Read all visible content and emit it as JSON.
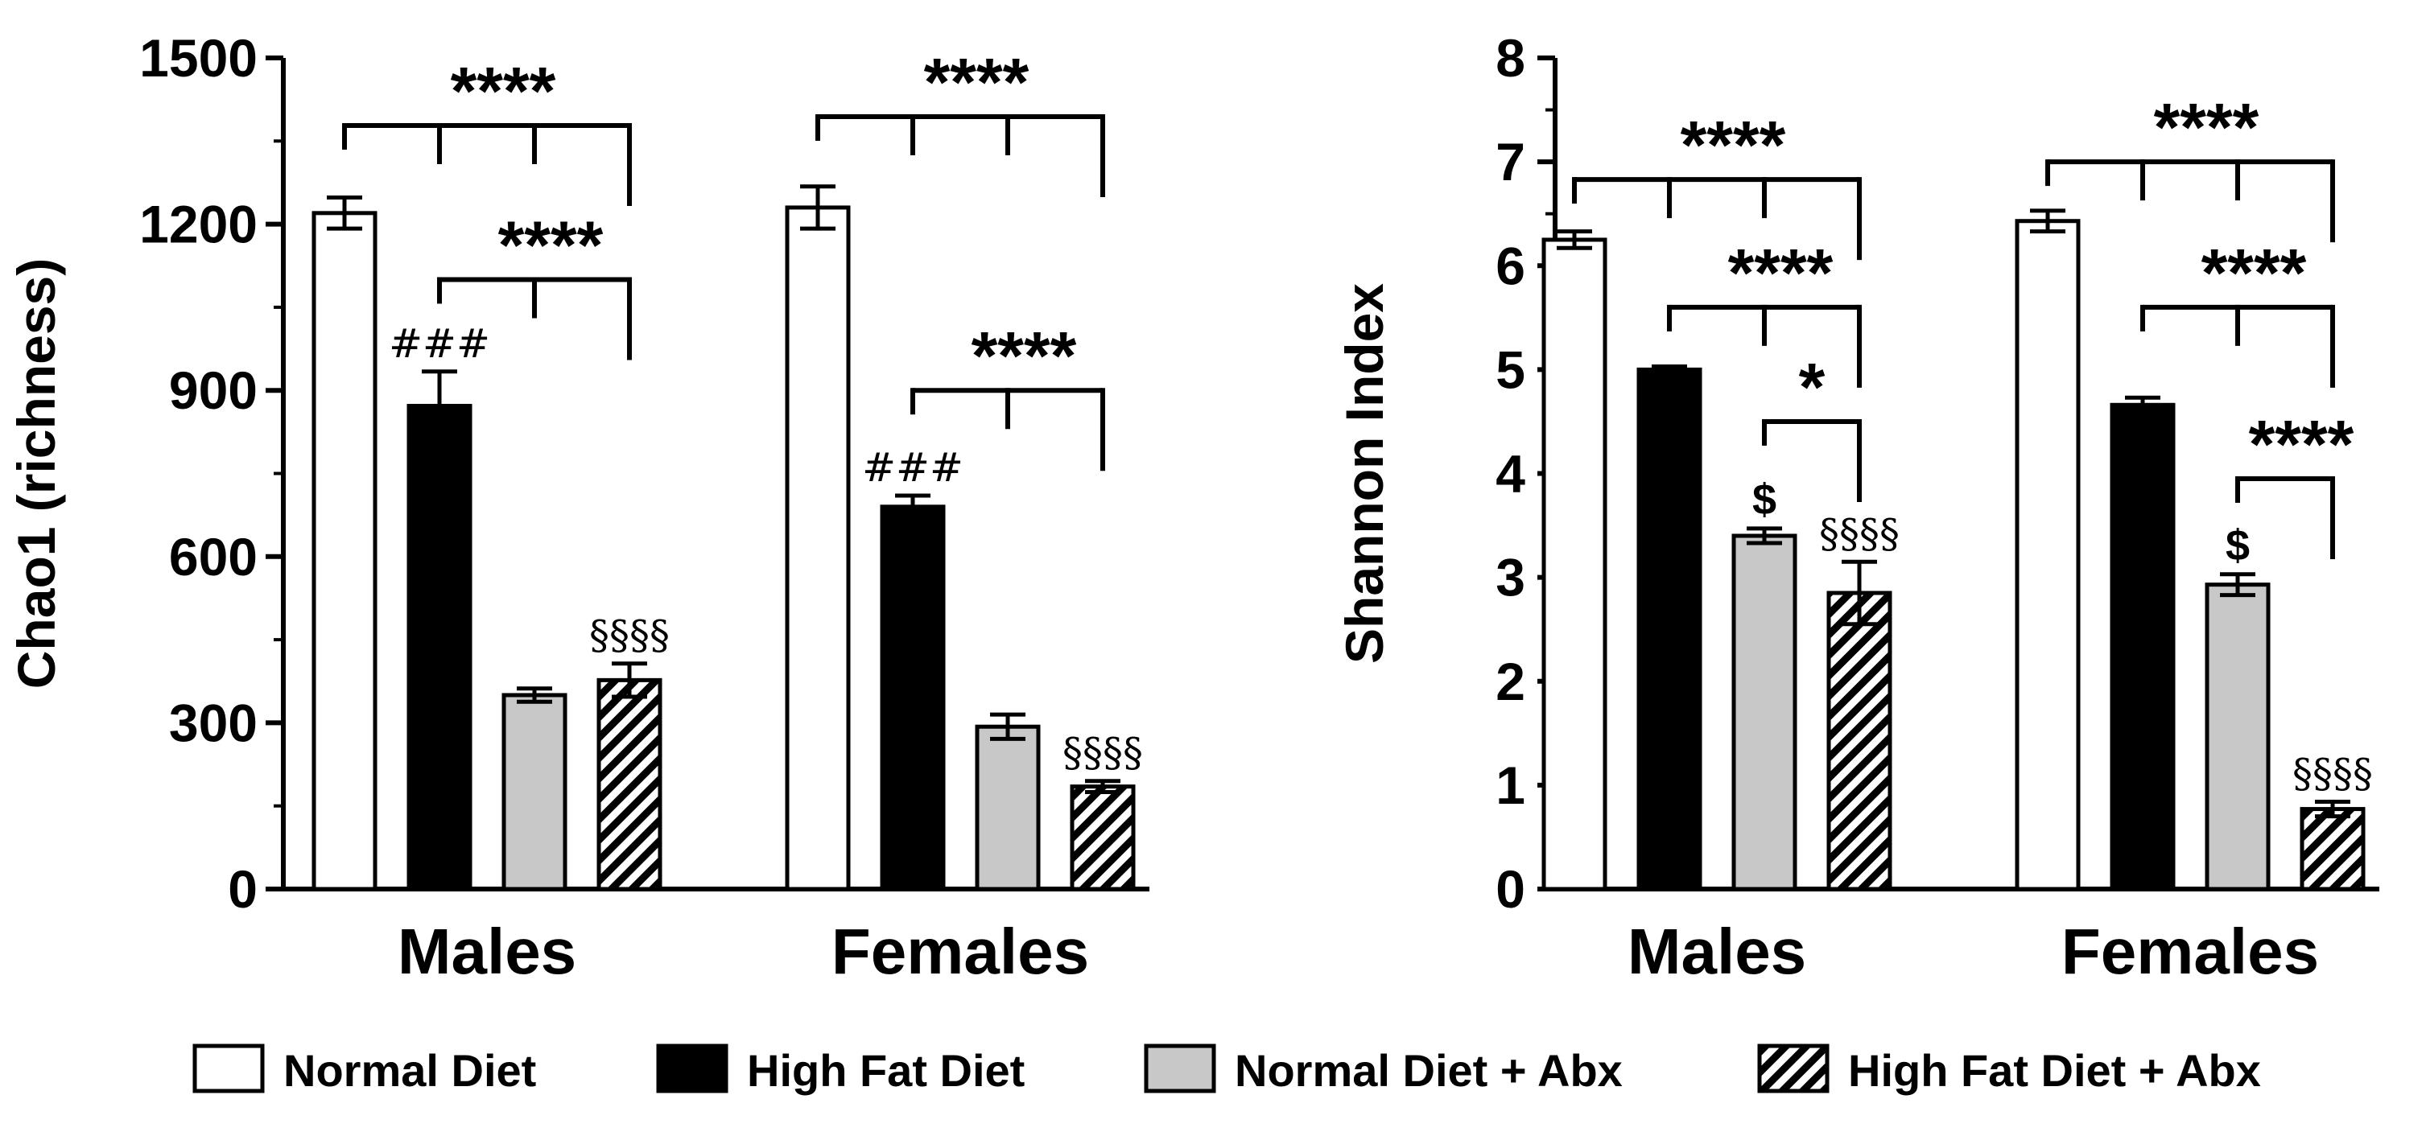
{
  "legend": [
    {
      "label": "Normal Diet",
      "fill": "white"
    },
    {
      "label": "High Fat Diet",
      "fill": "black"
    },
    {
      "label": "Normal Diet + Abx",
      "fill": "gray"
    },
    {
      "label": "High Fat Diet + Abx",
      "fill": "hatch"
    }
  ],
  "colors": {
    "gray": "#c8c8c8",
    "black": "#000000",
    "white": "#ffffff"
  },
  "chart_data": [
    {
      "type": "bar",
      "ylabel": "Chao1 (richness)",
      "ylim": [
        0,
        1500
      ],
      "yticks": [
        "0",
        "300",
        "600",
        "900",
        "1200",
        "1500"
      ],
      "categories": [
        "Males",
        "Females"
      ],
      "series": [
        {
          "name": "Normal Diet",
          "values": [
            1220,
            1230
          ],
          "errors": [
            28,
            38
          ]
        },
        {
          "name": "High Fat Diet",
          "values": [
            872,
            690
          ],
          "errors": [
            62,
            20
          ]
        },
        {
          "name": "Normal Diet + Abx",
          "values": [
            350,
            293
          ],
          "errors": [
            12,
            22
          ]
        },
        {
          "name": "High Fat Diet + Abx",
          "values": [
            377,
            185
          ],
          "errors": [
            30,
            10
          ]
        }
      ],
      "bar_labels": [
        {
          "group": 0,
          "series": 1,
          "text": "###"
        },
        {
          "group": 0,
          "series": 3,
          "text": "§§§§"
        },
        {
          "group": 1,
          "series": 1,
          "text": "###"
        },
        {
          "group": 1,
          "series": 3,
          "text": "§§§§"
        }
      ],
      "brackets": [
        {
          "group": 0,
          "from": 0,
          "to": 3,
          "y": 1378,
          "stars": "****"
        },
        {
          "group": 0,
          "from": 1,
          "to": 3,
          "y": 1100,
          "stars": "****"
        },
        {
          "group": 1,
          "from": 0,
          "to": 3,
          "y": 1394,
          "stars": "****"
        },
        {
          "group": 1,
          "from": 1,
          "to": 3,
          "y": 900,
          "stars": "****"
        }
      ]
    },
    {
      "type": "bar",
      "ylabel": "Shannon Index",
      "ylim": [
        0,
        8
      ],
      "yticks": [
        "0",
        "1",
        "2",
        "3",
        "4",
        "5",
        "6",
        "7",
        "8"
      ],
      "categories": [
        "Males",
        "Females"
      ],
      "series": [
        {
          "name": "Normal Diet",
          "values": [
            6.25,
            6.43
          ],
          "errors": [
            0.08,
            0.1
          ]
        },
        {
          "name": "High Fat Diet",
          "values": [
            5.0,
            4.66
          ],
          "errors": [
            0.03,
            0.07
          ]
        },
        {
          "name": "Normal Diet + Abx",
          "values": [
            3.4,
            2.93
          ],
          "errors": [
            0.07,
            0.1
          ]
        },
        {
          "name": "High Fat Diet + Abx",
          "values": [
            2.85,
            0.77
          ],
          "errors": [
            0.3,
            0.07
          ]
        }
      ],
      "bar_labels": [
        {
          "group": 0,
          "series": 2,
          "text": "$"
        },
        {
          "group": 0,
          "series": 3,
          "text": "§§§§"
        },
        {
          "group": 1,
          "series": 2,
          "text": "$"
        },
        {
          "group": 1,
          "series": 3,
          "text": "§§§§"
        }
      ],
      "brackets": [
        {
          "group": 0,
          "from": 0,
          "to": 3,
          "y": 6.83,
          "stars": "****"
        },
        {
          "group": 0,
          "from": 1,
          "to": 3,
          "y": 5.6,
          "stars": "****"
        },
        {
          "group": 0,
          "from": 2,
          "to": 3,
          "y": 4.5,
          "stars": "*"
        },
        {
          "group": 1,
          "from": 0,
          "to": 3,
          "y": 7.0,
          "stars": "****"
        },
        {
          "group": 1,
          "from": 1,
          "to": 3,
          "y": 5.6,
          "stars": "****"
        },
        {
          "group": 1,
          "from": 2,
          "to": 3,
          "y": 3.95,
          "stars": "****"
        }
      ]
    }
  ]
}
